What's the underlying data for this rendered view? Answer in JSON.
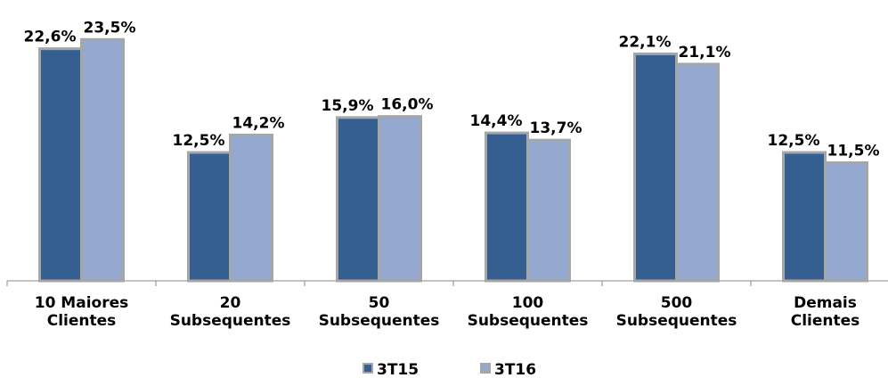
{
  "chart_data": {
    "type": "bar",
    "categories": [
      "10 Maiores\nClientes",
      "20\nSubsequentes",
      "50\nSubsequentes",
      "100\nSubsequentes",
      "500\nSubsequentes",
      "Demais\nClientes"
    ],
    "series": [
      {
        "name": "3T15",
        "color": "#365f91",
        "values": [
          22.6,
          12.5,
          15.9,
          14.4,
          22.1,
          12.5
        ],
        "value_labels": [
          "22,6%",
          "12,5%",
          "15,9%",
          "14,4%",
          "22,1%",
          "12,5%"
        ]
      },
      {
        "name": "3T16",
        "color": "#95a9d0",
        "values": [
          23.5,
          14.2,
          16.0,
          13.7,
          21.1,
          11.5
        ],
        "value_labels": [
          "23,5%",
          "14,2%",
          "16,0%",
          "13,7%",
          "21,1%",
          "11,5%"
        ]
      }
    ],
    "ylim": [
      0,
      25
    ],
    "legend": "bottom"
  }
}
